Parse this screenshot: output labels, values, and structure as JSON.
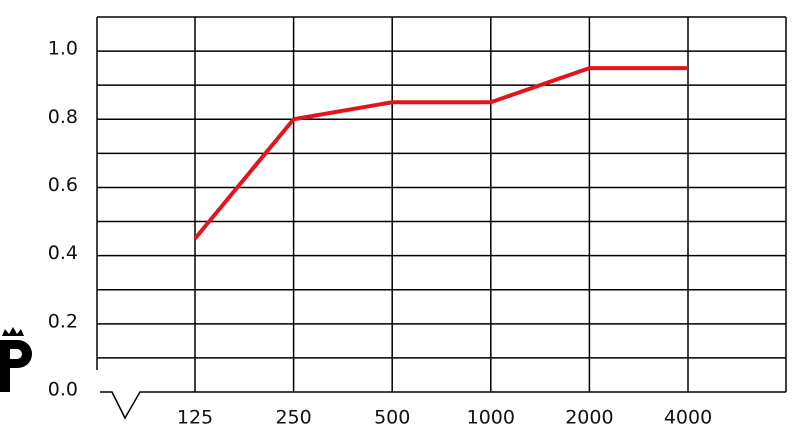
{
  "chart_data": {
    "type": "line",
    "categories": [
      "125",
      "250",
      "500",
      "1000",
      "2000",
      "4000"
    ],
    "series": [
      {
        "color": "#e3151a",
        "values": [
          0.45,
          0.8,
          0.85,
          0.85,
          0.95,
          0.95
        ]
      }
    ],
    "ylim": [
      0,
      1.1
    ],
    "yticks": [
      {
        "value": 0,
        "label": "0.0"
      },
      0.2,
      0.4,
      0.6,
      0.8,
      {
        "value": 1,
        "label": "1.0"
      }
    ],
    "y_minor_ticks": [
      0.1,
      0.3,
      0.5,
      0.7,
      0.9
    ],
    "grid": true
  }
}
